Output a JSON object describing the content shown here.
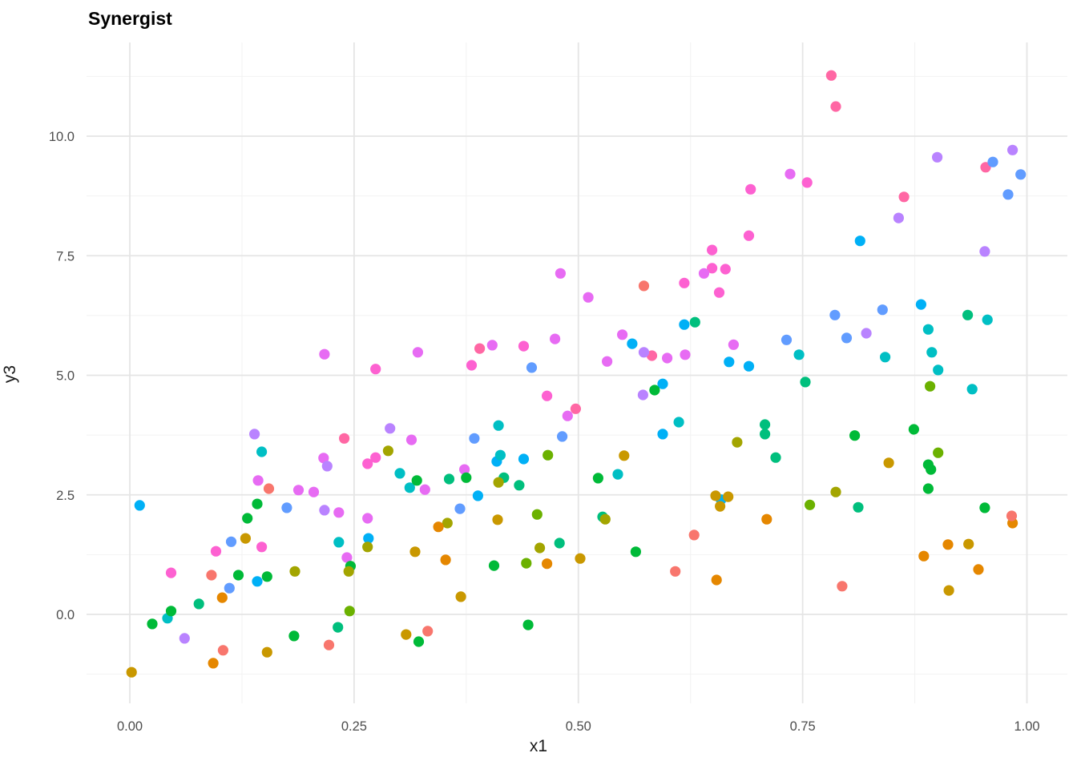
{
  "chart_data": {
    "type": "scatter",
    "title": "Synergist",
    "xlabel": "x1",
    "ylabel": "y3",
    "legend": "none",
    "grid": "major+minor",
    "xlim": [
      -0.05,
      1.05
    ],
    "ylim": [
      -1.6,
      11.9
    ],
    "x_major_ticks": [
      0.0,
      0.25,
      0.5,
      0.75,
      1.0
    ],
    "x_tick_labels": [
      "0.00",
      "0.25",
      "0.50",
      "0.75",
      "1.00"
    ],
    "x_minor_ticks": [
      0.125,
      0.375,
      0.625,
      0.875
    ],
    "y_major_ticks": [
      0.0,
      2.5,
      5.0,
      7.5,
      10.0
    ],
    "y_tick_labels": [
      "0.0",
      "2.5",
      "5.0",
      "7.5",
      "10.0"
    ],
    "y_minor_ticks": [
      -1.25,
      1.25,
      3.75,
      6.25,
      8.75,
      11.25
    ],
    "palette": {
      "s": "#F8766D",
      "o": "#E58700",
      "g": "#C99800",
      "ol": "#A3A500",
      "yg": "#6BB100",
      "gr": "#00BA38",
      "em": "#00BF7D",
      "te": "#00BFC4",
      "az": "#00B0F6",
      "ro": "#619CFF",
      "la": "#B983FF",
      "or": "#E76BF3",
      "dp": "#FD61D1",
      "rs": "#FF67A4"
    },
    "points": [
      [
        0.782,
        11.27,
        "rs"
      ],
      [
        0.787,
        10.62,
        "rs"
      ],
      [
        0.954,
        9.35,
        "rs"
      ],
      [
        0.863,
        8.73,
        "rs"
      ],
      [
        0.582,
        5.41,
        "rs"
      ],
      [
        0.39,
        5.56,
        "rs"
      ],
      [
        0.497,
        4.3,
        "rs"
      ],
      [
        0.239,
        3.68,
        "rs"
      ],
      [
        0.755,
        9.03,
        "dp"
      ],
      [
        0.692,
        8.89,
        "dp"
      ],
      [
        0.69,
        7.92,
        "dp"
      ],
      [
        0.649,
        7.62,
        "dp"
      ],
      [
        0.649,
        7.24,
        "dp"
      ],
      [
        0.664,
        7.22,
        "dp"
      ],
      [
        0.618,
        6.93,
        "dp"
      ],
      [
        0.657,
        6.73,
        "dp"
      ],
      [
        0.439,
        5.61,
        "dp"
      ],
      [
        0.381,
        5.21,
        "dp"
      ],
      [
        0.274,
        5.13,
        "dp"
      ],
      [
        0.465,
        4.57,
        "dp"
      ],
      [
        0.274,
        3.28,
        "dp"
      ],
      [
        0.265,
        3.15,
        "dp"
      ],
      [
        0.096,
        1.32,
        "dp"
      ],
      [
        0.147,
        1.41,
        "dp"
      ],
      [
        0.046,
        0.87,
        "dp"
      ],
      [
        0.736,
        9.21,
        "or"
      ],
      [
        0.48,
        7.13,
        "or"
      ],
      [
        0.64,
        7.13,
        "or"
      ],
      [
        0.511,
        6.63,
        "or"
      ],
      [
        0.549,
        5.85,
        "or"
      ],
      [
        0.599,
        5.36,
        "or"
      ],
      [
        0.619,
        5.43,
        "or"
      ],
      [
        0.532,
        5.29,
        "or"
      ],
      [
        0.673,
        5.64,
        "or"
      ],
      [
        0.474,
        5.76,
        "or"
      ],
      [
        0.404,
        5.63,
        "or"
      ],
      [
        0.321,
        5.48,
        "or"
      ],
      [
        0.217,
        5.44,
        "or"
      ],
      [
        0.488,
        4.15,
        "or"
      ],
      [
        0.314,
        3.65,
        "or"
      ],
      [
        0.216,
        3.27,
        "or"
      ],
      [
        0.143,
        2.8,
        "or"
      ],
      [
        0.188,
        2.6,
        "or"
      ],
      [
        0.205,
        2.56,
        "or"
      ],
      [
        0.373,
        3.03,
        "or"
      ],
      [
        0.329,
        2.61,
        "or"
      ],
      [
        0.233,
        2.13,
        "or"
      ],
      [
        0.265,
        2.01,
        "or"
      ],
      [
        0.242,
        1.19,
        "or"
      ],
      [
        0.9,
        9.56,
        "la"
      ],
      [
        0.984,
        9.71,
        "la"
      ],
      [
        0.857,
        8.29,
        "la"
      ],
      [
        0.953,
        7.59,
        "la"
      ],
      [
        0.821,
        5.88,
        "la"
      ],
      [
        0.573,
        5.48,
        "la"
      ],
      [
        0.572,
        4.59,
        "la"
      ],
      [
        0.29,
        3.89,
        "la"
      ],
      [
        0.139,
        3.77,
        "la"
      ],
      [
        0.22,
        3.1,
        "la"
      ],
      [
        0.217,
        2.18,
        "la"
      ],
      [
        0.061,
        -0.5,
        "la"
      ],
      [
        0.962,
        9.46,
        "ro"
      ],
      [
        0.993,
        9.2,
        "ro"
      ],
      [
        0.979,
        8.78,
        "ro"
      ],
      [
        0.786,
        6.26,
        "ro"
      ],
      [
        0.839,
        6.37,
        "ro"
      ],
      [
        0.799,
        5.78,
        "ro"
      ],
      [
        0.732,
        5.74,
        "ro"
      ],
      [
        0.448,
        5.16,
        "ro"
      ],
      [
        0.384,
        3.68,
        "ro"
      ],
      [
        0.482,
        3.72,
        "ro"
      ],
      [
        0.175,
        2.23,
        "ro"
      ],
      [
        0.368,
        2.21,
        "ro"
      ],
      [
        0.113,
        1.52,
        "ro"
      ],
      [
        0.111,
        0.55,
        "ro"
      ],
      [
        0.814,
        7.81,
        "az"
      ],
      [
        0.618,
        6.06,
        "az"
      ],
      [
        0.882,
        6.48,
        "az"
      ],
      [
        0.56,
        5.66,
        "az"
      ],
      [
        0.668,
        5.28,
        "az"
      ],
      [
        0.69,
        5.19,
        "az"
      ],
      [
        0.594,
        4.82,
        "az"
      ],
      [
        0.594,
        3.77,
        "az"
      ],
      [
        0.409,
        3.2,
        "az"
      ],
      [
        0.439,
        3.25,
        "az"
      ],
      [
        0.388,
        2.48,
        "az"
      ],
      [
        0.659,
        2.4,
        "az"
      ],
      [
        0.011,
        2.28,
        "az"
      ],
      [
        0.266,
        1.59,
        "az"
      ],
      [
        0.142,
        0.69,
        "az"
      ],
      [
        0.956,
        6.16,
        "te"
      ],
      [
        0.89,
        5.96,
        "te"
      ],
      [
        0.842,
        5.38,
        "te"
      ],
      [
        0.894,
        5.48,
        "te"
      ],
      [
        0.901,
        5.11,
        "te"
      ],
      [
        0.939,
        4.71,
        "te"
      ],
      [
        0.746,
        5.43,
        "te"
      ],
      [
        0.411,
        3.95,
        "te"
      ],
      [
        0.612,
        4.02,
        "te"
      ],
      [
        0.147,
        3.4,
        "te"
      ],
      [
        0.413,
        3.33,
        "te"
      ],
      [
        0.301,
        2.95,
        "te"
      ],
      [
        0.312,
        2.65,
        "te"
      ],
      [
        0.544,
        2.93,
        "te"
      ],
      [
        0.233,
        1.51,
        "te"
      ],
      [
        0.042,
        -0.08,
        "te"
      ],
      [
        0.63,
        6.11,
        "em"
      ],
      [
        0.934,
        6.26,
        "em"
      ],
      [
        0.753,
        4.86,
        "em"
      ],
      [
        0.708,
        3.97,
        "em"
      ],
      [
        0.708,
        3.77,
        "em"
      ],
      [
        0.72,
        3.28,
        "em"
      ],
      [
        0.356,
        2.83,
        "em"
      ],
      [
        0.417,
        2.86,
        "em"
      ],
      [
        0.434,
        2.7,
        "em"
      ],
      [
        0.527,
        2.04,
        "em"
      ],
      [
        0.479,
        1.49,
        "em"
      ],
      [
        0.812,
        2.24,
        "em"
      ],
      [
        0.077,
        0.22,
        "em"
      ],
      [
        0.232,
        -0.27,
        "em"
      ],
      [
        0.585,
        4.69,
        "gr"
      ],
      [
        0.808,
        3.74,
        "gr"
      ],
      [
        0.874,
        3.87,
        "gr"
      ],
      [
        0.375,
        2.86,
        "gr"
      ],
      [
        0.32,
        2.8,
        "gr"
      ],
      [
        0.522,
        2.85,
        "gr"
      ],
      [
        0.89,
        3.13,
        "gr"
      ],
      [
        0.893,
        3.03,
        "gr"
      ],
      [
        0.142,
        2.31,
        "gr"
      ],
      [
        0.131,
        2.01,
        "gr"
      ],
      [
        0.406,
        1.02,
        "gr"
      ],
      [
        0.246,
        1.01,
        "gr"
      ],
      [
        0.121,
        0.82,
        "gr"
      ],
      [
        0.153,
        0.79,
        "gr"
      ],
      [
        0.89,
        2.63,
        "gr"
      ],
      [
        0.953,
        2.23,
        "gr"
      ],
      [
        0.564,
        1.31,
        "gr"
      ],
      [
        0.046,
        0.07,
        "gr"
      ],
      [
        0.025,
        -0.2,
        "gr"
      ],
      [
        0.183,
        -0.45,
        "gr"
      ],
      [
        0.322,
        -0.57,
        "gr"
      ],
      [
        0.444,
        -0.22,
        "gr"
      ],
      [
        0.892,
        4.77,
        "yg"
      ],
      [
        0.901,
        3.38,
        "yg"
      ],
      [
        0.466,
        3.33,
        "yg"
      ],
      [
        0.454,
        2.09,
        "yg"
      ],
      [
        0.758,
        2.29,
        "yg"
      ],
      [
        0.442,
        1.07,
        "yg"
      ],
      [
        0.245,
        0.07,
        "yg"
      ],
      [
        0.677,
        3.6,
        "ol"
      ],
      [
        0.411,
        2.76,
        "ol"
      ],
      [
        0.288,
        3.42,
        "ol"
      ],
      [
        0.265,
        1.41,
        "ol"
      ],
      [
        0.354,
        1.91,
        "ol"
      ],
      [
        0.457,
        1.39,
        "ol"
      ],
      [
        0.53,
        1.99,
        "ol"
      ],
      [
        0.787,
        2.56,
        "ol"
      ],
      [
        0.184,
        0.9,
        "ol"
      ],
      [
        0.244,
        0.9,
        "ol"
      ],
      [
        0.551,
        3.32,
        "g"
      ],
      [
        0.846,
        3.17,
        "g"
      ],
      [
        0.129,
        1.59,
        "g"
      ],
      [
        0.318,
        1.31,
        "g"
      ],
      [
        0.41,
        1.98,
        "g"
      ],
      [
        0.653,
        2.48,
        "g"
      ],
      [
        0.667,
        2.46,
        "g"
      ],
      [
        0.658,
        2.26,
        "g"
      ],
      [
        0.502,
        1.17,
        "g"
      ],
      [
        0.935,
        1.47,
        "g"
      ],
      [
        0.913,
        0.5,
        "g"
      ],
      [
        0.369,
        0.37,
        "g"
      ],
      [
        0.308,
        -0.42,
        "g"
      ],
      [
        0.153,
        -0.79,
        "g"
      ],
      [
        0.002,
        -1.21,
        "g"
      ],
      [
        0.344,
        1.83,
        "o"
      ],
      [
        0.352,
        1.14,
        "o"
      ],
      [
        0.465,
        1.06,
        "o"
      ],
      [
        0.71,
        1.99,
        "o"
      ],
      [
        0.654,
        0.72,
        "o"
      ],
      [
        0.984,
        1.91,
        "o"
      ],
      [
        0.912,
        1.46,
        "o"
      ],
      [
        0.885,
        1.22,
        "o"
      ],
      [
        0.946,
        0.94,
        "o"
      ],
      [
        0.103,
        0.35,
        "o"
      ],
      [
        0.093,
        -1.02,
        "o"
      ],
      [
        0.573,
        6.87,
        "s"
      ],
      [
        0.155,
        2.63,
        "s"
      ],
      [
        0.091,
        0.82,
        "s"
      ],
      [
        0.629,
        1.66,
        "s"
      ],
      [
        0.608,
        0.9,
        "s"
      ],
      [
        0.983,
        2.06,
        "s"
      ],
      [
        0.794,
        0.59,
        "s"
      ],
      [
        0.104,
        -0.75,
        "s"
      ],
      [
        0.222,
        -0.64,
        "s"
      ],
      [
        0.332,
        -0.35,
        "s"
      ]
    ]
  }
}
